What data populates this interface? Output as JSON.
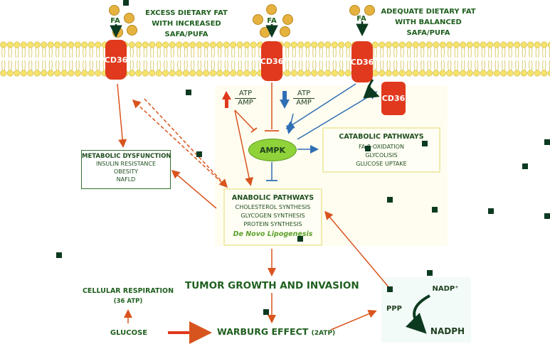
{
  "top_labels": {
    "excess_line1": "EXCESS DIETARY FAT",
    "excess_line2": "WITH INCREASED",
    "excess_line3": "SAFA/PUFA",
    "adequate_line1": "ADEQUATE DIETARY FAT",
    "adequate_line2": "WITH BALANCED",
    "adequate_line3": "SAFA/PUFA"
  },
  "fa_labels": [
    "FA",
    "FA",
    "FA"
  ],
  "cd36_labels": [
    "CD36",
    "CD36",
    "CD36",
    "CD36"
  ],
  "atp_up": {
    "numerator": "ATP",
    "denominator": "AMP"
  },
  "atp_down": {
    "numerator": "ATP",
    "denominator": "AMP"
  },
  "ampk": "AMPK",
  "catabolic": {
    "title": "CATABOLIC PATHWAYS",
    "items": [
      "FA β-OXIDATION",
      "GLYCOLISIS",
      "GLUCOSE UPTAKE"
    ]
  },
  "metabolic": {
    "title": "METABOLIC DYSFUNCTION",
    "items": [
      "INSULIN RESISTANCE",
      "OBESITY",
      "NAFLD"
    ]
  },
  "anabolic": {
    "title": "ANABOLIC PATHWAYS",
    "items": [
      "CHOLESTEROL SYNTHESIS",
      "GLYCOGEN SYNTHESIS",
      "PROTEIN SYNTHESIS"
    ],
    "dnl": "De Novo Lipogenesis"
  },
  "tumor": "TUMOR GROWTH AND INVASION",
  "cellular_resp": {
    "line1": "CELLULAR RESPIRATION",
    "line2": "(36 ATP)"
  },
  "glucose": "GLUCOSE",
  "warburg": {
    "main": "WARBURG EFFECT",
    "sub": "(2ATP)"
  },
  "ppp": {
    "label": "PPP",
    "nadp": "NADP⁺",
    "nadph": "NADPH"
  },
  "colors": {
    "green": "#1f5f1f",
    "red": "#e0391d",
    "blue": "#2f6fb5",
    "membrane": "#f4e070",
    "ampk": "#8fd23a"
  }
}
